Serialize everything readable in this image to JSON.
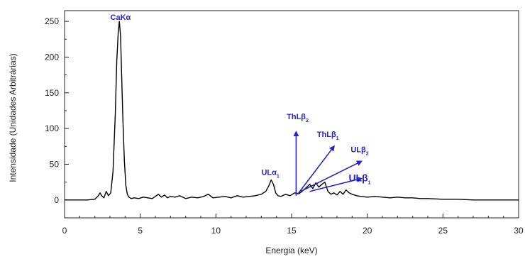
{
  "chart_data": {
    "type": "line",
    "xlabel": "Energia (keV)",
    "ylabel": "Intensidade (Unidades Arbitrárias)",
    "xlim": [
      0,
      30
    ],
    "ylim": [
      -25,
      265
    ],
    "x_ticks": [
      0,
      5,
      10,
      15,
      20,
      25,
      30
    ],
    "y_ticks": [
      0,
      50,
      100,
      150,
      200,
      250
    ],
    "grid": false,
    "line_color": "#000000",
    "label_color": "#2323c8",
    "series": [
      {
        "x": [
          0,
          0.5,
          1,
          1.5,
          2,
          2.2,
          2.35,
          2.45,
          2.6,
          2.75,
          2.9,
          3.05,
          3.2,
          3.35,
          3.45,
          3.55,
          3.62,
          3.7,
          3.78,
          3.86,
          3.95,
          4.05,
          4.15,
          4.25,
          4.4,
          4.6,
          4.9,
          5.2,
          5.5,
          5.8,
          6.0,
          6.2,
          6.4,
          6.6,
          6.8,
          7.0,
          7.3,
          7.6,
          8.0,
          8.4,
          8.8,
          9.2,
          9.5,
          9.8,
          10.2,
          10.6,
          11.0,
          11.4,
          11.8,
          12.2,
          12.6,
          13.0,
          13.3,
          13.5,
          13.65,
          13.8,
          13.95,
          14.1,
          14.3,
          14.6,
          14.9,
          15.2,
          15.5,
          15.8,
          16.0,
          16.2,
          16.4,
          16.6,
          16.8,
          17.0,
          17.2,
          17.4,
          17.6,
          17.8,
          18.0,
          18.2,
          18.4,
          18.6,
          18.8,
          19.0,
          19.3,
          19.6,
          20.0,
          20.5,
          21.0,
          21.5,
          22.0,
          22.5,
          23.0,
          23.5,
          24.0,
          25.0,
          26.0,
          27.0,
          28.0,
          29.0,
          30.0
        ],
        "y": [
          0,
          0,
          0,
          0,
          1,
          5,
          10,
          6,
          3,
          12,
          6,
          10,
          40,
          120,
          195,
          235,
          250,
          230,
          170,
          110,
          55,
          20,
          8,
          4,
          2,
          3,
          2,
          4,
          3,
          2,
          5,
          8,
          4,
          7,
          3,
          5,
          4,
          6,
          2,
          4,
          3,
          5,
          8,
          3,
          4,
          5,
          3,
          6,
          4,
          5,
          6,
          8,
          12,
          20,
          28,
          22,
          10,
          6,
          5,
          8,
          6,
          10,
          9,
          14,
          18,
          22,
          16,
          24,
          18,
          22,
          25,
          12,
          8,
          10,
          7,
          12,
          8,
          14,
          10,
          8,
          6,
          5,
          4,
          5,
          4,
          3,
          4,
          3,
          3,
          2,
          2,
          1,
          1,
          0,
          0,
          0,
          0
        ]
      }
    ],
    "annotations": [
      {
        "main": "CaKα",
        "sub": "",
        "x": 3.7,
        "y": 252,
        "arrow": false,
        "size": 11
      },
      {
        "main": "ULα",
        "sub": "1",
        "x": 13.6,
        "y": 35,
        "arrow": false,
        "size": 11
      },
      {
        "main": "ThLβ",
        "sub": "2",
        "x": 15.4,
        "y": 113,
        "arrow": true,
        "arrow_from": [
          15.3,
          6
        ],
        "arrow_to": [
          15.3,
          95
        ],
        "size": 11
      },
      {
        "main": "ThLβ",
        "sub": "1",
        "x": 17.4,
        "y": 88,
        "arrow": true,
        "arrow_from": [
          15.4,
          8
        ],
        "arrow_to": [
          17.8,
          75
        ],
        "size": 11
      },
      {
        "main": "ULβ",
        "sub": "2",
        "x": 19.5,
        "y": 67,
        "arrow": true,
        "arrow_from": [
          15.6,
          12
        ],
        "arrow_to": [
          19.6,
          54
        ],
        "size": 11
      },
      {
        "main": "ULβ",
        "sub": "1",
        "x": 19.5,
        "y": 26,
        "arrow": true,
        "arrow_from": [
          16.2,
          12
        ],
        "arrow_to": [
          19.6,
          30
        ],
        "size": 14
      }
    ]
  }
}
